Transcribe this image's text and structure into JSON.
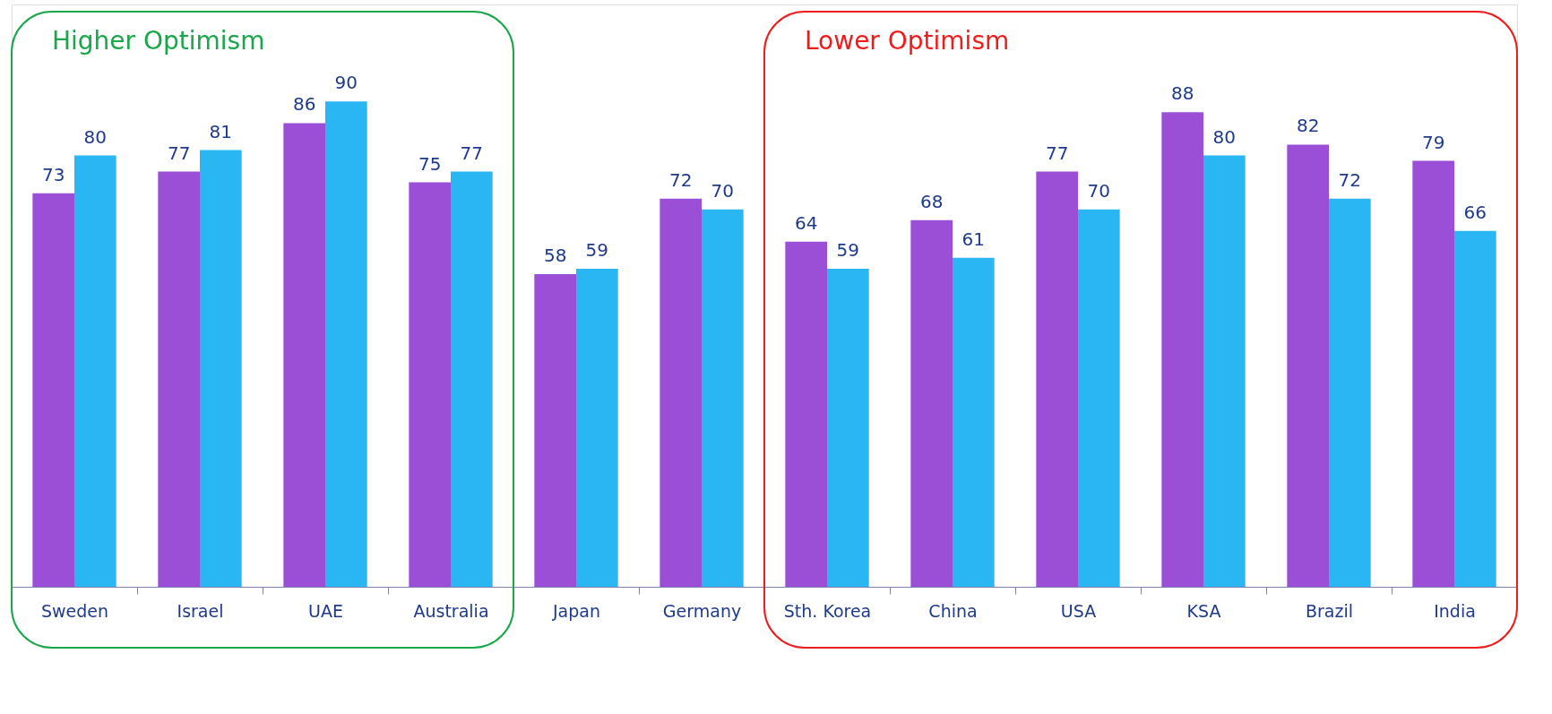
{
  "chart_data": {
    "type": "bar",
    "categories": [
      "Sweden",
      "Israel",
      "UAE",
      "Australia",
      "Japan",
      "Germany",
      "Sth. Korea",
      "China",
      "USA",
      "KSA",
      "Brazil",
      "India"
    ],
    "series": [
      {
        "color": "#9b4fd6",
        "values": [
          73,
          77,
          86,
          75,
          58,
          72,
          64,
          68,
          77,
          88,
          82,
          79
        ]
      },
      {
        "color": "#29b6f2",
        "values": [
          80,
          81,
          90,
          77,
          59,
          70,
          59,
          61,
          70,
          80,
          72,
          66
        ]
      }
    ],
    "data_labels": true,
    "annotations": [
      "Higher Optimism",
      "Lower Optimism"
    ],
    "grid": false,
    "legend": false
  }
}
